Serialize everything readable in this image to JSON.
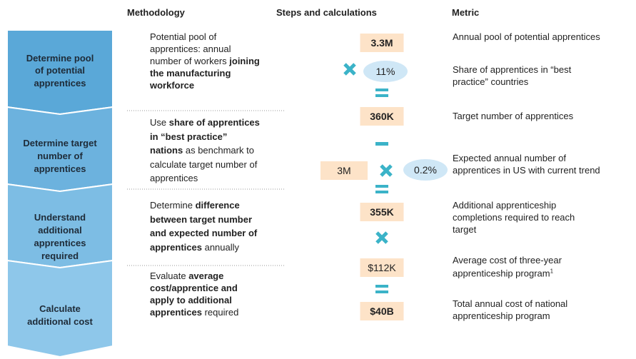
{
  "headers": [
    "Methodology",
    "Steps and calculations",
    "Metric"
  ],
  "steps": [
    {
      "lines": [
        "Determine pool",
        "of potential",
        "apprentices"
      ]
    },
    {
      "lines": [
        "Determine target",
        "number of",
        "apprentices"
      ]
    },
    {
      "lines": [
        "Understand",
        "additional",
        "apprentices",
        "required"
      ]
    },
    {
      "lines": [
        "Calculate",
        "additional cost"
      ]
    }
  ],
  "methodology": [
    {
      "lines": [
        [
          {
            "text": "Potential pool of",
            "bold": false
          }
        ],
        [
          {
            "text": "apprentices: annual",
            "bold": false
          }
        ],
        [
          {
            "text": "number of workers ",
            "bold": false
          },
          {
            "text": "joining",
            "bold": true
          }
        ],
        [
          {
            "text": "the manufacturing",
            "bold": true
          }
        ],
        [
          {
            "text": "workforce",
            "bold": true
          }
        ]
      ]
    },
    {
      "lines": [
        [
          {
            "text": "Use ",
            "bold": false
          },
          {
            "text": "share of apprentices",
            "bold": true
          }
        ],
        [
          {
            "text": "in “best practice”",
            "bold": true
          }
        ],
        [
          {
            "text": "nations",
            "bold": true
          },
          {
            "text": " as benchmark to",
            "bold": false
          }
        ],
        [
          {
            "text": "calculate target number of",
            "bold": false
          }
        ],
        [
          {
            "text": "apprentices",
            "bold": false
          }
        ]
      ]
    },
    {
      "lines": [
        [
          {
            "text": "Determine ",
            "bold": false
          },
          {
            "text": "difference",
            "bold": true
          }
        ],
        [
          {
            "text": "between target number",
            "bold": true
          }
        ],
        [
          {
            "text": "and expected number of",
            "bold": true
          }
        ],
        [
          {
            "text": "apprentices",
            "bold": true
          },
          {
            "text": " annually",
            "bold": false
          }
        ]
      ]
    },
    {
      "lines": [
        [
          {
            "text": "Evaluate ",
            "bold": false
          },
          {
            "text": "average",
            "bold": true
          }
        ],
        [
          {
            "text": "cost/apprentice and",
            "bold": true
          }
        ],
        [
          {
            "text": "apply to additional",
            "bold": true
          }
        ],
        [
          {
            "text": "apprentices",
            "bold": true
          },
          {
            "text": " required",
            "bold": false
          }
        ]
      ]
    }
  ],
  "calculations": [
    {
      "text": "3.3M",
      "shape": "box",
      "bold": true
    },
    {
      "text": "11%",
      "shape": "ellipse",
      "bold": false
    },
    {
      "text": "360K",
      "shape": "box",
      "bold": true
    },
    {
      "text": "3M",
      "shape": "box",
      "bold": false
    },
    {
      "text": "0.2%",
      "shape": "ellipse",
      "bold": false
    },
    {
      "text": "355K",
      "shape": "box",
      "bold": true
    },
    {
      "text": "$112K",
      "shape": "box",
      "bold": false
    },
    {
      "text": "$40B",
      "shape": "box",
      "bold": true
    }
  ],
  "metrics": [
    {
      "lines": [
        "Annual pool of potential apprentices"
      ]
    },
    {
      "lines": [
        "Share of apprentices in “best",
        "practice” countries"
      ]
    },
    {
      "lines": [
        "Target number of apprentices"
      ]
    },
    {
      "lines": [
        "Expected annual number of",
        "apprentices in US with current trend"
      ]
    },
    {
      "lines": [
        "Additional apprenticeship",
        "completions required to reach",
        "target"
      ]
    },
    {
      "lines": [
        "Average cost of three-year",
        "apprenticeship program"
      ],
      "footnote": "1"
    },
    {
      "lines": [
        "Total annual cost of national",
        "apprenticeship program"
      ]
    }
  ]
}
